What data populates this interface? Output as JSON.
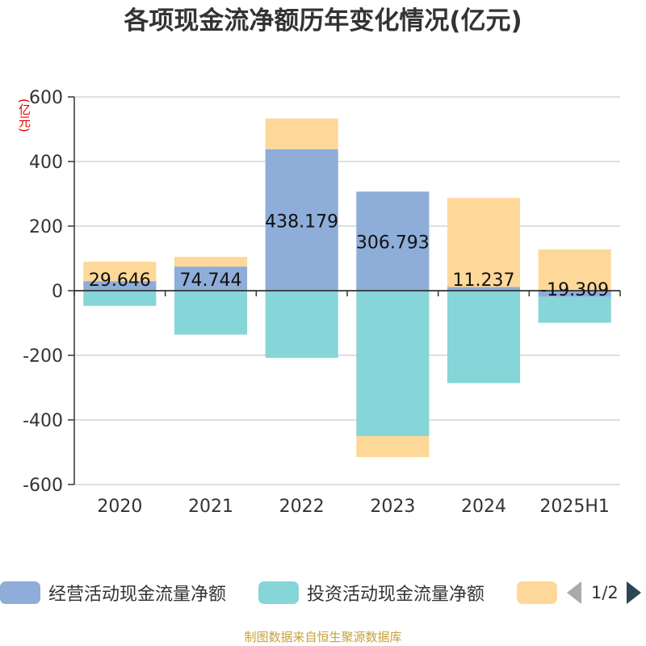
{
  "chart_data": {
    "type": "bar",
    "stacked": true,
    "title": "各项现金流净额历年变化情况(亿元)",
    "unit": "(亿元)",
    "categories": [
      "2020",
      "2021",
      "2022",
      "2023",
      "2024",
      "2025H1"
    ],
    "ylim": [
      -600,
      600
    ],
    "yticks": [
      600,
      400,
      200,
      0,
      -200,
      -400,
      -600
    ],
    "grid": true,
    "legend_position": "bottom",
    "series": [
      {
        "name": "经营活动现金流量净额",
        "color": "#8eadd9",
        "values": [
          29.646,
          74.744,
          438.179,
          306.793,
          11.237,
          -19.309
        ],
        "labels": [
          "29.646",
          "74.744",
          "438.179",
          "306.793",
          "11.237",
          "-19.309"
        ]
      },
      {
        "name": "投资活动现金流量净额",
        "color": "#86d5d8",
        "values": [
          -47,
          -136,
          -208,
          -450,
          -286,
          -80
        ]
      },
      {
        "name": "",
        "color": "#fed899",
        "values": [
          60,
          30,
          95,
          -65,
          276,
          128
        ]
      }
    ],
    "pager": "1/2",
    "source": "制图数据来自恒生聚源数据库"
  }
}
